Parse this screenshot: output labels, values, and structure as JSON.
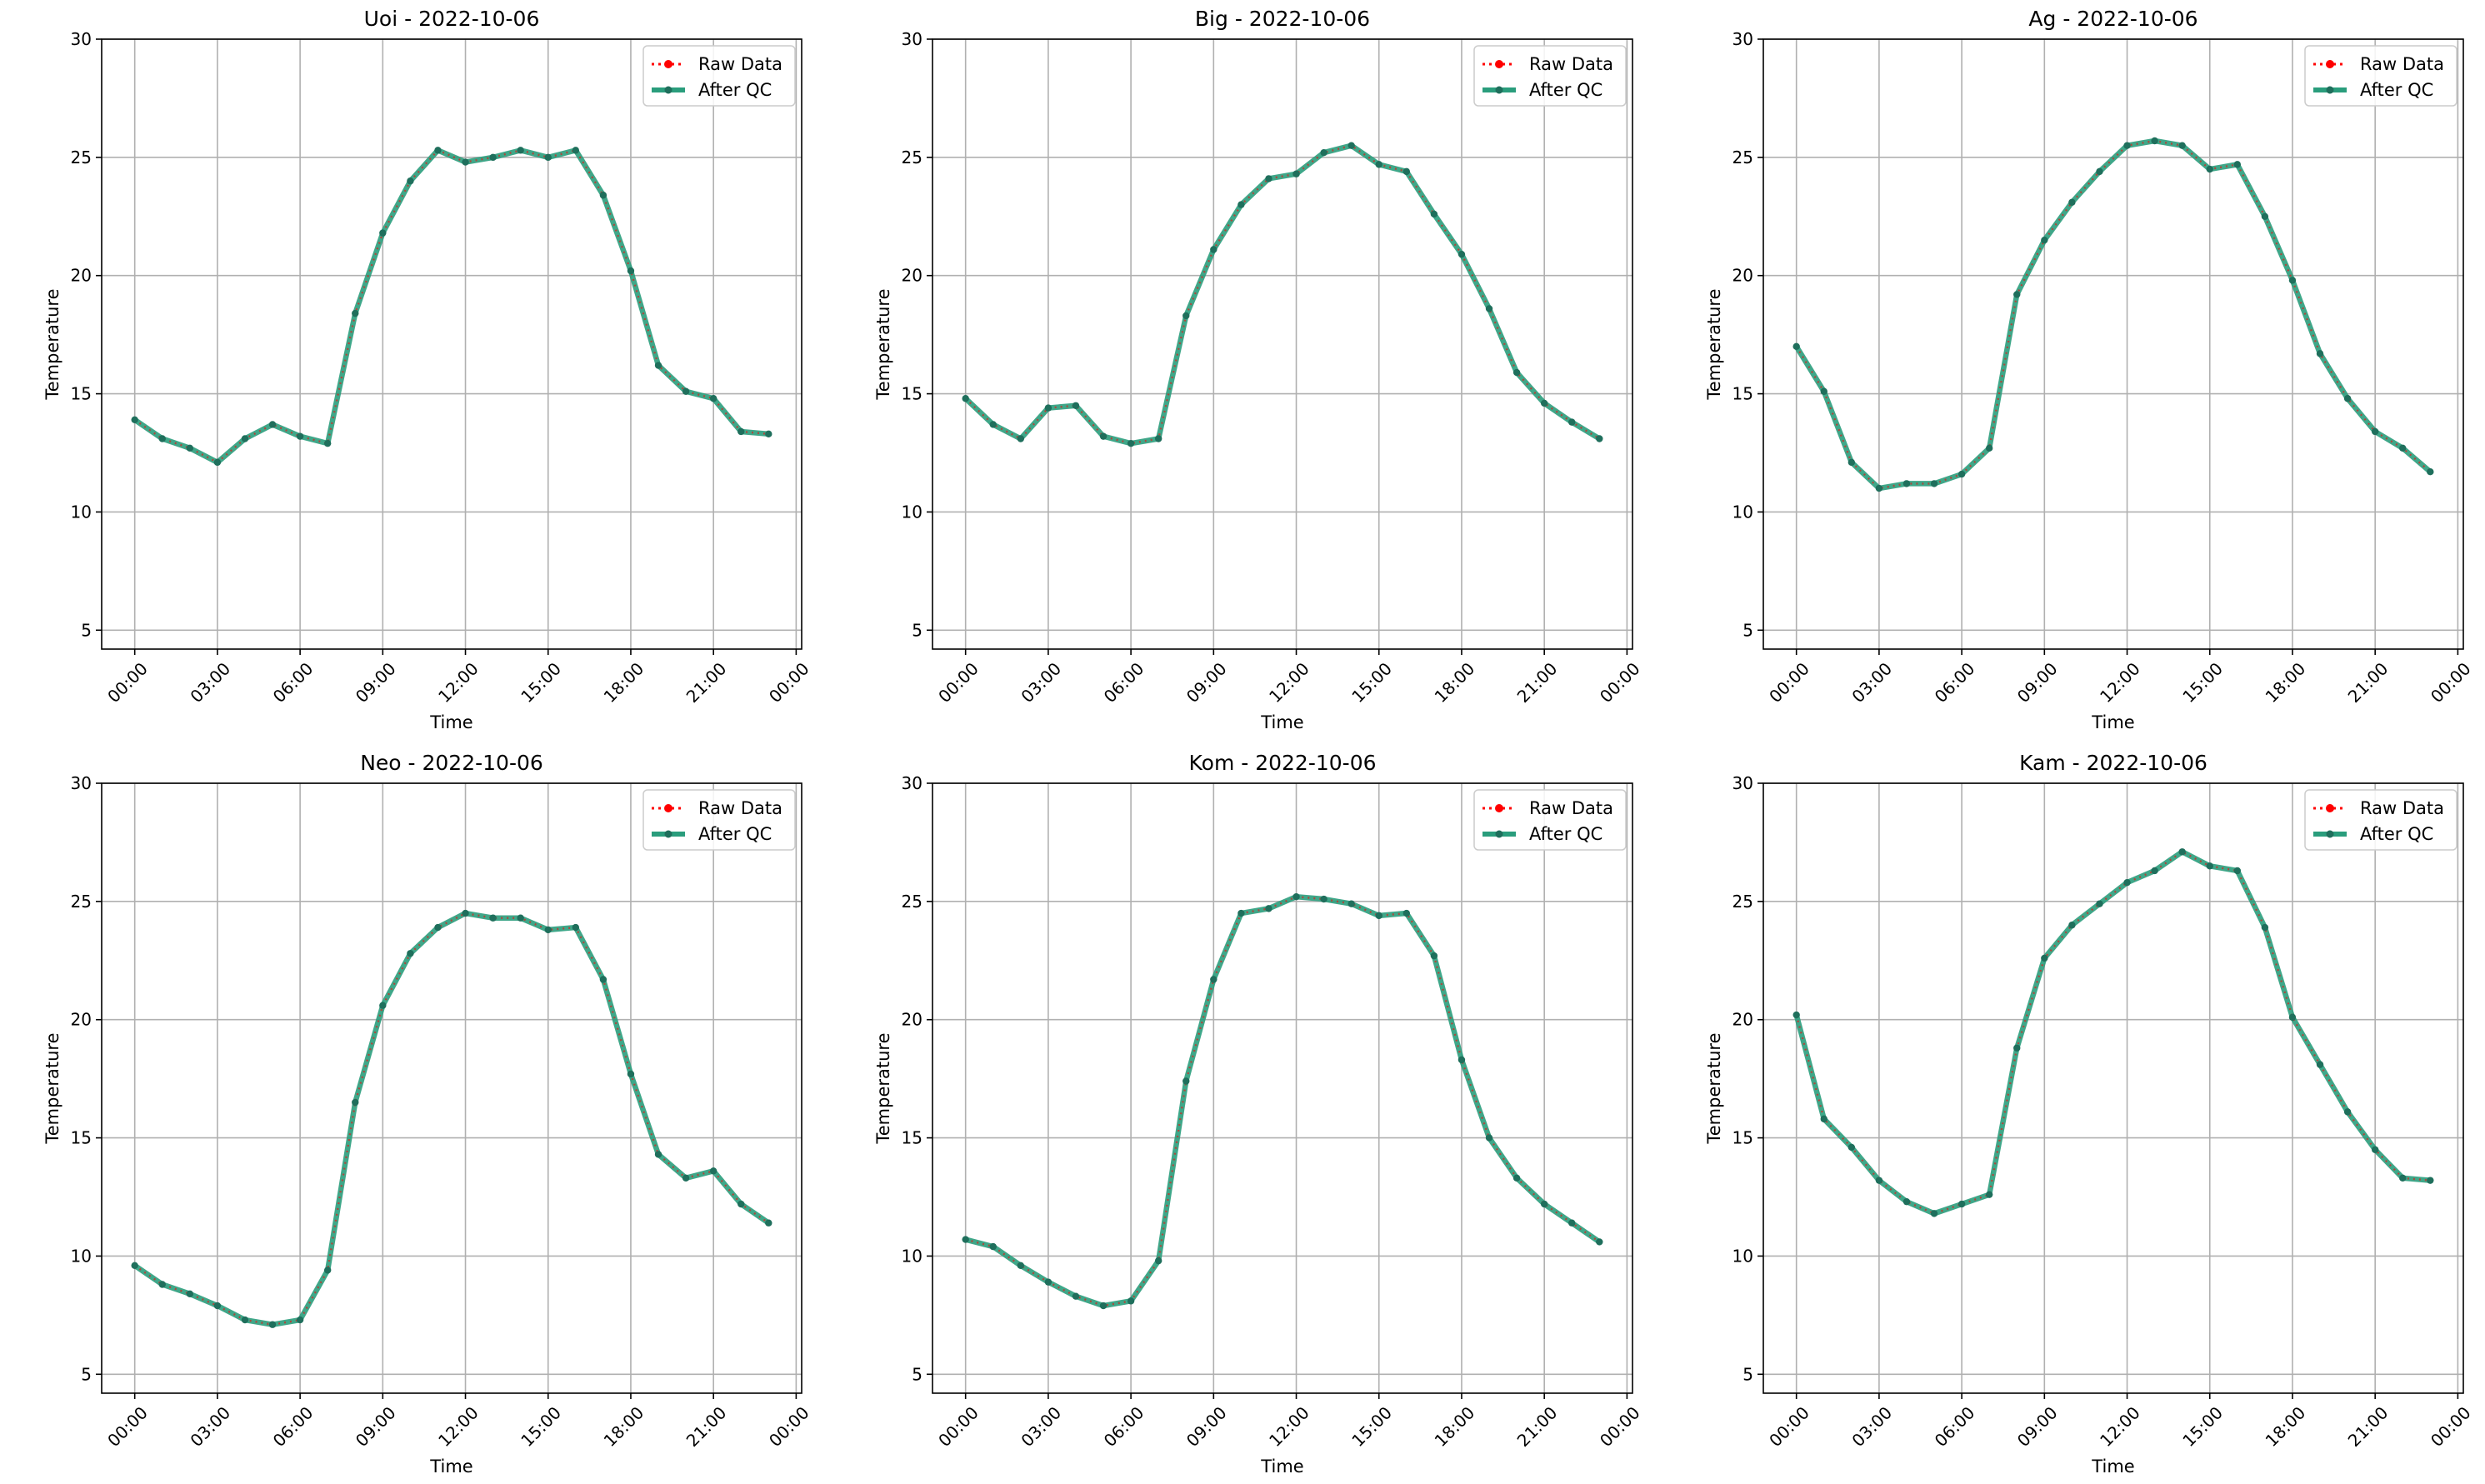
{
  "colors": {
    "raw": "#ff0000",
    "qc": "#2a9d7c",
    "qc_marker": "#1f6f5c",
    "grid": "#b0b0b0",
    "axis": "#000000",
    "legend_border": "#cccccc"
  },
  "chart_data": [
    {
      "type": "line",
      "title": "Uoi - 2022-10-06",
      "xlabel": "Time",
      "ylabel": "Temperature",
      "xticks": [
        "00:00",
        "03:00",
        "06:00",
        "09:00",
        "12:00",
        "15:00",
        "18:00",
        "21:00",
        "00:00"
      ],
      "yticks": [
        "5",
        "10",
        "15",
        "20",
        "25",
        "30"
      ],
      "ylim": [
        4.2,
        30
      ],
      "grid": true,
      "legend_position": "top-right",
      "x": [
        "00:00",
        "01:00",
        "02:00",
        "03:00",
        "04:00",
        "05:00",
        "06:00",
        "07:00",
        "08:00",
        "09:00",
        "10:00",
        "11:00",
        "12:00",
        "13:00",
        "14:00",
        "15:00",
        "16:00",
        "17:00",
        "18:00",
        "19:00",
        "20:00",
        "21:00",
        "22:00",
        "23:00"
      ],
      "series": [
        {
          "name": "Raw Data",
          "style": "dotted",
          "values": [
            13.9,
            13.1,
            12.7,
            12.1,
            13.1,
            13.7,
            13.2,
            12.9,
            18.4,
            21.8,
            24.0,
            25.3,
            24.8,
            25.0,
            25.3,
            25.0,
            25.3,
            23.4,
            20.2,
            16.2,
            15.1,
            14.8,
            13.4,
            13.3
          ]
        },
        {
          "name": "After QC",
          "style": "solid",
          "values": [
            13.9,
            13.1,
            12.7,
            12.1,
            13.1,
            13.7,
            13.2,
            12.9,
            18.4,
            21.8,
            24.0,
            25.3,
            24.8,
            25.0,
            25.3,
            25.0,
            25.3,
            23.4,
            20.2,
            16.2,
            15.1,
            14.8,
            13.4,
            13.3
          ]
        }
      ]
    },
    {
      "type": "line",
      "title": "Big - 2022-10-06",
      "xlabel": "Time",
      "ylabel": "Temperature",
      "xticks": [
        "00:00",
        "03:00",
        "06:00",
        "09:00",
        "12:00",
        "15:00",
        "18:00",
        "21:00",
        "00:00"
      ],
      "yticks": [
        "5",
        "10",
        "15",
        "20",
        "25",
        "30"
      ],
      "ylim": [
        4.2,
        30
      ],
      "grid": true,
      "legend_position": "top-right",
      "x": [
        "00:00",
        "01:00",
        "02:00",
        "03:00",
        "04:00",
        "05:00",
        "06:00",
        "07:00",
        "08:00",
        "09:00",
        "10:00",
        "11:00",
        "12:00",
        "13:00",
        "14:00",
        "15:00",
        "16:00",
        "17:00",
        "18:00",
        "19:00",
        "20:00",
        "21:00",
        "22:00",
        "23:00"
      ],
      "series": [
        {
          "name": "Raw Data",
          "style": "dotted",
          "values": [
            14.8,
            13.7,
            13.1,
            14.4,
            14.5,
            13.2,
            12.9,
            13.1,
            18.3,
            21.1,
            23.0,
            24.1,
            24.3,
            25.2,
            25.5,
            24.7,
            24.4,
            22.6,
            20.9,
            18.6,
            15.9,
            14.6,
            13.8,
            13.1
          ]
        },
        {
          "name": "After QC",
          "style": "solid",
          "values": [
            14.8,
            13.7,
            13.1,
            14.4,
            14.5,
            13.2,
            12.9,
            13.1,
            18.3,
            21.1,
            23.0,
            24.1,
            24.3,
            25.2,
            25.5,
            24.7,
            24.4,
            22.6,
            20.9,
            18.6,
            15.9,
            14.6,
            13.8,
            13.1
          ]
        }
      ]
    },
    {
      "type": "line",
      "title": "Ag - 2022-10-06",
      "xlabel": "Time",
      "ylabel": "Temperature",
      "xticks": [
        "00:00",
        "03:00",
        "06:00",
        "09:00",
        "12:00",
        "15:00",
        "18:00",
        "21:00",
        "00:00"
      ],
      "yticks": [
        "5",
        "10",
        "15",
        "20",
        "25",
        "30"
      ],
      "ylim": [
        4.2,
        30
      ],
      "grid": true,
      "legend_position": "top-right",
      "x": [
        "00:00",
        "01:00",
        "02:00",
        "03:00",
        "04:00",
        "05:00",
        "06:00",
        "07:00",
        "08:00",
        "09:00",
        "10:00",
        "11:00",
        "12:00",
        "13:00",
        "14:00",
        "15:00",
        "16:00",
        "17:00",
        "18:00",
        "19:00",
        "20:00",
        "21:00",
        "22:00",
        "23:00"
      ],
      "series": [
        {
          "name": "Raw Data",
          "style": "dotted",
          "values": [
            17.0,
            15.1,
            12.1,
            11.0,
            11.2,
            11.2,
            11.6,
            12.7,
            19.2,
            21.5,
            23.1,
            24.4,
            25.5,
            25.7,
            25.5,
            24.5,
            24.7,
            22.5,
            19.8,
            16.7,
            14.8,
            13.4,
            12.7,
            11.7
          ]
        },
        {
          "name": "After QC",
          "style": "solid",
          "values": [
            17.0,
            15.1,
            12.1,
            11.0,
            11.2,
            11.2,
            11.6,
            12.7,
            19.2,
            21.5,
            23.1,
            24.4,
            25.5,
            25.7,
            25.5,
            24.5,
            24.7,
            22.5,
            19.8,
            16.7,
            14.8,
            13.4,
            12.7,
            11.7
          ]
        }
      ]
    },
    {
      "type": "line",
      "title": "Neo - 2022-10-06",
      "xlabel": "Time",
      "ylabel": "Temperature",
      "xticks": [
        "00:00",
        "03:00",
        "06:00",
        "09:00",
        "12:00",
        "15:00",
        "18:00",
        "21:00",
        "00:00"
      ],
      "yticks": [
        "5",
        "10",
        "15",
        "20",
        "25",
        "30"
      ],
      "ylim": [
        4.2,
        30
      ],
      "grid": true,
      "legend_position": "top-right",
      "x": [
        "00:00",
        "01:00",
        "02:00",
        "03:00",
        "04:00",
        "05:00",
        "06:00",
        "07:00",
        "08:00",
        "09:00",
        "10:00",
        "11:00",
        "12:00",
        "13:00",
        "14:00",
        "15:00",
        "16:00",
        "17:00",
        "18:00",
        "19:00",
        "20:00",
        "21:00",
        "22:00",
        "23:00"
      ],
      "series": [
        {
          "name": "Raw Data",
          "style": "dotted",
          "values": [
            9.6,
            8.8,
            8.4,
            7.9,
            7.3,
            7.1,
            7.3,
            9.4,
            16.5,
            20.6,
            22.8,
            23.9,
            24.5,
            24.3,
            24.3,
            23.8,
            23.9,
            21.7,
            17.7,
            14.3,
            13.3,
            13.6,
            12.2,
            11.4
          ]
        },
        {
          "name": "After QC",
          "style": "solid",
          "values": [
            9.6,
            8.8,
            8.4,
            7.9,
            7.3,
            7.1,
            7.3,
            9.4,
            16.5,
            20.6,
            22.8,
            23.9,
            24.5,
            24.3,
            24.3,
            23.8,
            23.9,
            21.7,
            17.7,
            14.3,
            13.3,
            13.6,
            12.2,
            11.4
          ]
        }
      ]
    },
    {
      "type": "line",
      "title": "Kom - 2022-10-06",
      "xlabel": "Time",
      "ylabel": "Temperature",
      "xticks": [
        "00:00",
        "03:00",
        "06:00",
        "09:00",
        "12:00",
        "15:00",
        "18:00",
        "21:00",
        "00:00"
      ],
      "yticks": [
        "5",
        "10",
        "15",
        "20",
        "25",
        "30"
      ],
      "ylim": [
        4.2,
        30
      ],
      "grid": true,
      "legend_position": "top-right",
      "x": [
        "00:00",
        "01:00",
        "02:00",
        "03:00",
        "04:00",
        "05:00",
        "06:00",
        "07:00",
        "08:00",
        "09:00",
        "10:00",
        "11:00",
        "12:00",
        "13:00",
        "14:00",
        "15:00",
        "16:00",
        "17:00",
        "18:00",
        "19:00",
        "20:00",
        "21:00",
        "22:00",
        "23:00"
      ],
      "series": [
        {
          "name": "Raw Data",
          "style": "dotted",
          "values": [
            10.7,
            10.4,
            9.6,
            8.9,
            8.3,
            7.9,
            8.1,
            9.8,
            17.4,
            21.7,
            24.5,
            24.7,
            25.2,
            25.1,
            24.9,
            24.4,
            24.5,
            22.7,
            18.3,
            15.0,
            13.3,
            12.2,
            11.4,
            10.6
          ]
        },
        {
          "name": "After QC",
          "style": "solid",
          "values": [
            10.7,
            10.4,
            9.6,
            8.9,
            8.3,
            7.9,
            8.1,
            9.8,
            17.4,
            21.7,
            24.5,
            24.7,
            25.2,
            25.1,
            24.9,
            24.4,
            24.5,
            22.7,
            18.3,
            15.0,
            13.3,
            12.2,
            11.4,
            10.6
          ]
        }
      ]
    },
    {
      "type": "line",
      "title": "Kam - 2022-10-06",
      "xlabel": "Time",
      "ylabel": "Temperature",
      "xticks": [
        "00:00",
        "03:00",
        "06:00",
        "09:00",
        "12:00",
        "15:00",
        "18:00",
        "21:00",
        "00:00"
      ],
      "yticks": [
        "5",
        "10",
        "15",
        "20",
        "25",
        "30"
      ],
      "ylim": [
        4.2,
        30
      ],
      "grid": true,
      "legend_position": "top-right",
      "x": [
        "00:00",
        "01:00",
        "02:00",
        "03:00",
        "04:00",
        "05:00",
        "06:00",
        "07:00",
        "08:00",
        "09:00",
        "10:00",
        "11:00",
        "12:00",
        "13:00",
        "14:00",
        "15:00",
        "16:00",
        "17:00",
        "18:00",
        "19:00",
        "20:00",
        "21:00",
        "22:00",
        "23:00"
      ],
      "series": [
        {
          "name": "Raw Data",
          "style": "dotted",
          "values": [
            20.2,
            15.8,
            14.6,
            13.2,
            12.3,
            11.8,
            12.2,
            12.6,
            18.8,
            22.6,
            24.0,
            24.9,
            25.8,
            26.3,
            27.1,
            26.5,
            26.3,
            23.9,
            20.1,
            18.1,
            16.1,
            14.5,
            13.3,
            13.2
          ]
        },
        {
          "name": "After QC",
          "style": "solid",
          "values": [
            20.2,
            15.8,
            14.6,
            13.2,
            12.3,
            11.8,
            12.2,
            12.6,
            18.8,
            22.6,
            24.0,
            24.9,
            25.8,
            26.3,
            27.1,
            26.5,
            26.3,
            23.9,
            20.1,
            18.1,
            16.1,
            14.5,
            13.3,
            13.2
          ]
        }
      ]
    }
  ]
}
